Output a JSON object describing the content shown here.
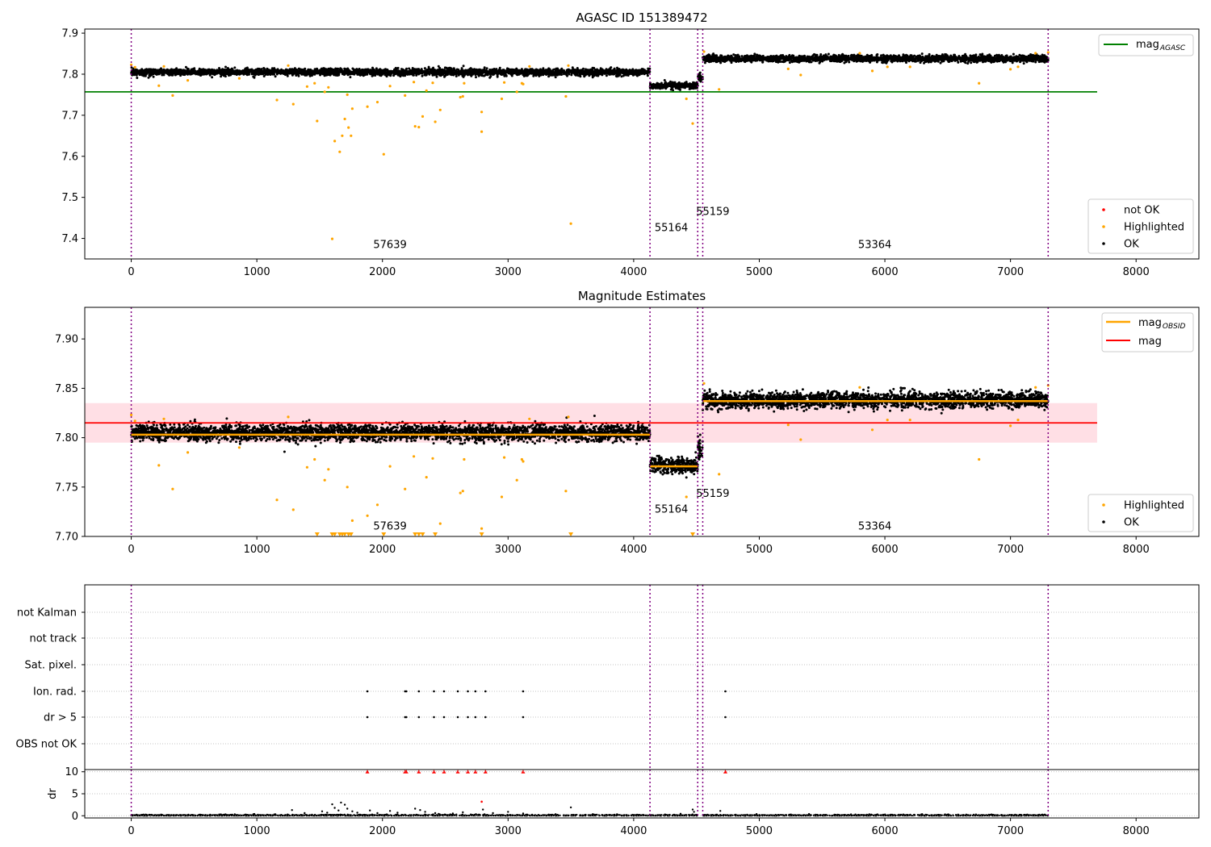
{
  "figure": {
    "panel1_title": "AGASC ID 151389472",
    "panel2_title": "Magnitude Estimates"
  },
  "colors": {
    "ok": "#000000",
    "highlighted": "#ffa500",
    "not_ok": "#ff0000",
    "mag_agasc": "#008000",
    "mag": "#ff0000",
    "mag_obsid": "#ffa500",
    "band": "#ffc0cb",
    "obs_boundary": "#800080",
    "grid": "#b0b0b0"
  },
  "chart_data": [
    {
      "type": "scatter",
      "title": "AGASC ID 151389472",
      "xlim": [
        -370,
        8500
      ],
      "ylim": [
        7.35,
        7.91
      ],
      "xticks": [
        0,
        1000,
        2000,
        3000,
        4000,
        5000,
        6000,
        7000,
        8000
      ],
      "yticks": [
        7.4,
        7.5,
        7.6,
        7.7,
        7.8,
        7.9
      ],
      "legend_lines": {
        "position": "top-right",
        "entries": [
          {
            "label": "mag",
            "sub": "AGASC"
          }
        ]
      },
      "legend_points": {
        "position": "bottom-right",
        "entries": [
          "not OK",
          "Highlighted",
          "OK"
        ]
      },
      "hlines": [
        {
          "name": "mag_AGASC",
          "y": 7.757,
          "x": [
            -370,
            7690
          ]
        }
      ],
      "obs_boundaries": [
        0,
        4130,
        4510,
        4550,
        7300
      ],
      "obs_labels": [
        {
          "text": "57639",
          "x": 2060,
          "y": 7.377
        },
        {
          "text": "55164",
          "x": 4300,
          "y": 7.418
        },
        {
          "text": "55159",
          "x": 4630,
          "y": 7.457
        },
        {
          "text": "53364",
          "x": 5920,
          "y": 7.377
        }
      ],
      "segments": [
        {
          "x": [
            0,
            4130
          ],
          "mean": 7.805,
          "sigma": 0.004
        },
        {
          "x": [
            4130,
            4510
          ],
          "mean": 7.772,
          "sigma": 0.004
        },
        {
          "x": [
            4510,
            4550
          ],
          "mean": 7.79,
          "sigma": 0.006
        },
        {
          "x": [
            4550,
            7300
          ],
          "mean": 7.838,
          "sigma": 0.004
        }
      ],
      "highlighted_points": [
        [
          0,
          7.823
        ],
        [
          30,
          7.817
        ],
        [
          220,
          7.772
        ],
        [
          260,
          7.819
        ],
        [
          330,
          7.748
        ],
        [
          450,
          7.785
        ],
        [
          860,
          7.79
        ],
        [
          1160,
          7.737
        ],
        [
          1250,
          7.821
        ],
        [
          1290,
          7.727
        ],
        [
          1400,
          7.77
        ],
        [
          1460,
          7.778
        ],
        [
          1480,
          7.686
        ],
        [
          1540,
          7.757
        ],
        [
          1570,
          7.768
        ],
        [
          1600,
          7.399
        ],
        [
          1620,
          7.637
        ],
        [
          1660,
          7.611
        ],
        [
          1680,
          7.65
        ],
        [
          1700,
          7.691
        ],
        [
          1720,
          7.75
        ],
        [
          1730,
          7.67
        ],
        [
          1750,
          7.65
        ],
        [
          1760,
          7.716
        ],
        [
          1880,
          7.721
        ],
        [
          1960,
          7.732
        ],
        [
          2010,
          7.605
        ],
        [
          2060,
          7.771
        ],
        [
          2180,
          7.748
        ],
        [
          2250,
          7.781
        ],
        [
          2260,
          7.673
        ],
        [
          2290,
          7.671
        ],
        [
          2320,
          7.697
        ],
        [
          2350,
          7.76
        ],
        [
          2400,
          7.779
        ],
        [
          2420,
          7.684
        ],
        [
          2460,
          7.713
        ],
        [
          2620,
          7.744
        ],
        [
          2640,
          7.746
        ],
        [
          2650,
          7.778
        ],
        [
          2790,
          7.708
        ],
        [
          2790,
          7.66
        ],
        [
          2950,
          7.74
        ],
        [
          2970,
          7.78
        ],
        [
          3070,
          7.757
        ],
        [
          3110,
          7.778
        ],
        [
          3120,
          7.776
        ],
        [
          3170,
          7.819
        ],
        [
          3460,
          7.746
        ],
        [
          3480,
          7.821
        ],
        [
          3500,
          7.436
        ],
        [
          4420,
          7.74
        ],
        [
          4470,
          7.68
        ],
        [
          4680,
          7.763
        ],
        [
          4560,
          7.855
        ],
        [
          5230,
          7.813
        ],
        [
          5330,
          7.798
        ],
        [
          5800,
          7.851
        ],
        [
          5900,
          7.808
        ],
        [
          6020,
          7.818
        ],
        [
          6200,
          7.818
        ],
        [
          6750,
          7.778
        ],
        [
          7000,
          7.812
        ],
        [
          7060,
          7.818
        ],
        [
          7200,
          7.851
        ],
        [
          7300,
          7.853
        ]
      ]
    },
    {
      "type": "scatter",
      "title": "Magnitude Estimates",
      "xlim": [
        -370,
        8500
      ],
      "ylim": [
        7.7,
        7.932
      ],
      "xticks": [
        0,
        1000,
        2000,
        3000,
        4000,
        5000,
        6000,
        7000,
        8000
      ],
      "yticks": [
        7.7,
        7.75,
        7.8,
        7.85,
        7.9
      ],
      "legend_lines": {
        "position": "top-right",
        "entries": [
          {
            "label": "mag",
            "sub": "OBSID"
          },
          {
            "label": "mag",
            "sub": ""
          }
        ]
      },
      "legend_points": {
        "position": "bottom-right",
        "entries": [
          "Highlighted",
          "OK"
        ]
      },
      "mag": {
        "value": 7.815,
        "lower": 7.795,
        "upper": 7.835,
        "x": [
          -370,
          7690
        ]
      },
      "obsid_mags": [
        {
          "x": [
            0,
            4130
          ],
          "y": 7.803
        },
        {
          "x": [
            4130,
            4510
          ],
          "y": 7.771
        },
        {
          "x": [
            4550,
            7300
          ],
          "y": 7.837
        }
      ],
      "obs_boundaries": [
        0,
        4130,
        4510,
        4550,
        7300
      ],
      "obs_labels": [
        {
          "text": "57639",
          "x": 2060,
          "y": 7.707
        },
        {
          "text": "55164",
          "x": 4300,
          "y": 7.724
        },
        {
          "text": "55159",
          "x": 4630,
          "y": 7.74
        },
        {
          "text": "53364",
          "x": 5920,
          "y": 7.707
        }
      ],
      "clipped_points_x": [
        1480,
        1600,
        1620,
        1660,
        1680,
        1700,
        1730,
        1750,
        2010,
        2260,
        2290,
        2320,
        2420,
        2790,
        3500,
        4470
      ]
    },
    {
      "type": "scatter",
      "title": "",
      "xlim": [
        -370,
        8500
      ],
      "categories": [
        "not Kalman",
        "not track",
        "Sat. pixel.",
        "Ion. rad.",
        "dr > 5",
        "OBS not OK"
      ],
      "obs_boundaries": [
        0,
        4130,
        4510,
        4550,
        7300
      ],
      "flagged": {
        "Ion. rad.": [
          1880,
          2180,
          2190,
          2290,
          2410,
          2490,
          2600,
          2680,
          2740,
          2820,
          3120,
          4730
        ],
        "dr > 5": [
          1880,
          2180,
          2190,
          2290,
          2410,
          2490,
          2600,
          2680,
          2740,
          2820,
          3120,
          4730
        ]
      }
    },
    {
      "type": "scatter",
      "title": "",
      "ylabel": "dr",
      "xlim": [
        -370,
        8500
      ],
      "ylim": [
        -0.5,
        10.5
      ],
      "yticks": [
        0,
        5,
        10
      ],
      "xticks": [
        0,
        1000,
        2000,
        3000,
        4000,
        5000,
        6000,
        7000,
        8000
      ],
      "obs_boundaries": [
        0,
        4130,
        4510,
        4550,
        7300
      ],
      "clipped_at": 10,
      "clipped_x": [
        1880,
        2180,
        2190,
        2290,
        2410,
        2490,
        2600,
        2680,
        2740,
        2820,
        3120,
        4730
      ],
      "scattered_points": [
        [
          1280,
          1.3
        ],
        [
          1380,
          0.6
        ],
        [
          1520,
          1.0
        ],
        [
          1560,
          0.7
        ],
        [
          1600,
          2.6
        ],
        [
          1620,
          1.8
        ],
        [
          1650,
          1.2
        ],
        [
          1670,
          3.0
        ],
        [
          1700,
          2.5
        ],
        [
          1720,
          1.6
        ],
        [
          1760,
          1.0
        ],
        [
          1800,
          0.7
        ],
        [
          1900,
          1.2
        ],
        [
          1960,
          0.6
        ],
        [
          2060,
          1.1
        ],
        [
          2120,
          0.7
        ],
        [
          2260,
          1.6
        ],
        [
          2300,
          1.3
        ],
        [
          2340,
          0.9
        ],
        [
          2420,
          0.6
        ],
        [
          2560,
          0.5
        ],
        [
          2640,
          0.8
        ],
        [
          2790,
          3.2
        ],
        [
          2800,
          1.4
        ],
        [
          2880,
          0.6
        ],
        [
          3000,
          0.9
        ],
        [
          3120,
          0.5
        ],
        [
          3500,
          1.9
        ],
        [
          4470,
          1.4
        ],
        [
          4690,
          1.1
        ],
        [
          4480,
          0.9
        ]
      ]
    }
  ]
}
